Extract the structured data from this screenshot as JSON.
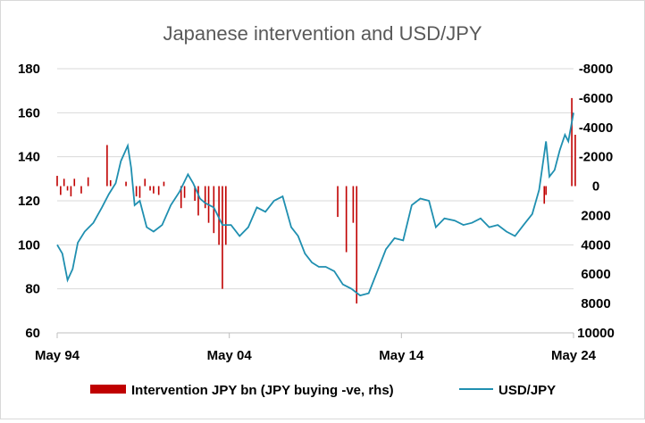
{
  "chart_data": {
    "type": "bar+line",
    "title": "Japanese intervention and USD/JPY",
    "x_ticks": [
      "May 94",
      "May 04",
      "May 14",
      "May 24"
    ],
    "left_axis": {
      "ylim": [
        60,
        180
      ],
      "ticks": [
        "180",
        "160",
        "140",
        "120",
        "100",
        "80",
        "60"
      ]
    },
    "right_axis": {
      "ylim": [
        -8000,
        10000
      ],
      "inverted": true,
      "ticks": [
        "-8000",
        "-6000",
        "-4000",
        "-2000",
        "0",
        "2000",
        "4000",
        "6000",
        "8000",
        "10000"
      ]
    },
    "grid": true,
    "legend_position": "bottom",
    "colors": {
      "bars": "#c00000",
      "line": "#1f8fb0",
      "grid": "#d9d9d9"
    },
    "series": [
      {
        "name": "Intervention JPY bn (JPY buying -ve, rhs)",
        "type": "bar",
        "axis": "right",
        "x": [
          1994.4,
          1994.6,
          1994.8,
          1995.0,
          1995.2,
          1995.4,
          1995.8,
          1996.2,
          1997.3,
          1997.5,
          1998.4,
          1999.0,
          1999.2,
          1999.5,
          1999.8,
          2000.0,
          2000.3,
          2000.6,
          2001.6,
          2001.8,
          2002.4,
          2002.6,
          2003.0,
          2003.2,
          2003.5,
          2003.8,
          2004.0,
          2004.2,
          2010.7,
          2011.2,
          2011.6,
          2011.8,
          2022.7,
          2022.8,
          2024.3,
          2024.5
        ],
        "values": [
          -700,
          600,
          -500,
          300,
          700,
          -500,
          500,
          -600,
          -2800,
          -400,
          -300,
          700,
          800,
          -500,
          300,
          500,
          600,
          -300,
          1500,
          800,
          1000,
          2000,
          1500,
          2500,
          3200,
          4000,
          7000,
          4000,
          2100,
          4500,
          2500,
          8000,
          1200,
          600,
          -6000,
          -3500
        ]
      },
      {
        "name": "USD/JPY",
        "type": "line",
        "axis": "left",
        "x": [
          1994.4,
          1994.7,
          1995.0,
          1995.3,
          1995.6,
          1996.0,
          1996.5,
          1997.0,
          1997.4,
          1997.8,
          1998.1,
          1998.5,
          1998.7,
          1998.9,
          1999.2,
          1999.6,
          2000.0,
          2000.5,
          2001.0,
          2001.5,
          2002.0,
          2002.3,
          2002.7,
          2003.0,
          2003.5,
          2004.0,
          2004.5,
          2005.0,
          2005.5,
          2006.0,
          2006.5,
          2007.0,
          2007.5,
          2008.0,
          2008.4,
          2008.8,
          2009.2,
          2009.6,
          2010.0,
          2010.5,
          2011.0,
          2011.5,
          2012.0,
          2012.5,
          2013.0,
          2013.5,
          2014.0,
          2014.5,
          2015.0,
          2015.5,
          2016.0,
          2016.4,
          2016.9,
          2017.5,
          2018.0,
          2018.5,
          2019.0,
          2019.5,
          2020.0,
          2020.5,
          2021.0,
          2021.5,
          2022.0,
          2022.4,
          2022.8,
          2023.0,
          2023.3,
          2023.6,
          2023.9,
          2024.1,
          2024.4
        ],
        "values": [
          100,
          96,
          84,
          89,
          101,
          106,
          110,
          117,
          123,
          128,
          138,
          145,
          135,
          118,
          120,
          108,
          106,
          109,
          118,
          124,
          132,
          128,
          121,
          119,
          117,
          109,
          109,
          104,
          108,
          117,
          115,
          120,
          122,
          108,
          104,
          96,
          92,
          90,
          90,
          88,
          82,
          80,
          77,
          78,
          88,
          98,
          103,
          102,
          118,
          121,
          120,
          108,
          112,
          111,
          109,
          110,
          112,
          108,
          109,
          106,
          104,
          109,
          114,
          125,
          147,
          131,
          134,
          143,
          150,
          147,
          160
        ]
      }
    ]
  }
}
